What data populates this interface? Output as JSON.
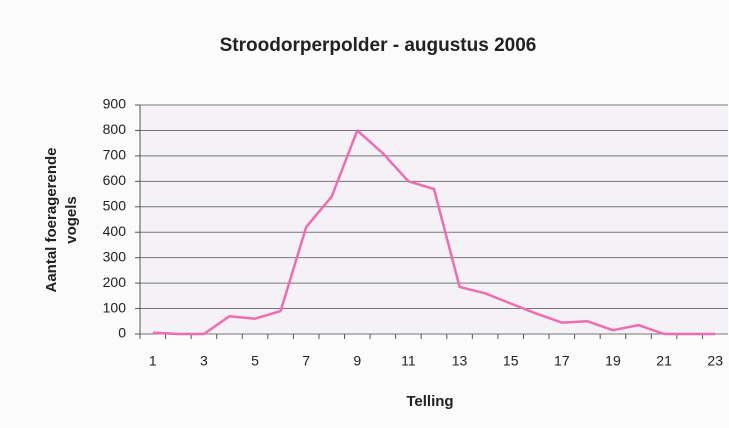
{
  "chart_data": {
    "type": "line",
    "title": "Stroodorperpolder - augustus 2006",
    "xlabel": "Telling",
    "ylabel": [
      "Aantal foeragerende",
      "vogels"
    ],
    "categories": [
      "1",
      null,
      "3",
      null,
      "5",
      null,
      "7",
      null,
      "9",
      null,
      "11",
      null,
      "13",
      null,
      "15",
      null,
      "17",
      null,
      "19",
      null,
      "21",
      null,
      "23"
    ],
    "series": [
      {
        "name": "vogels",
        "color": "#f06cb0",
        "values": [
          5,
          0,
          0,
          70,
          60,
          90,
          420,
          540,
          800,
          710,
          600,
          570,
          185,
          160,
          120,
          80,
          45,
          50,
          15,
          35,
          0,
          0,
          0
        ]
      }
    ],
    "ylim": [
      0,
      900
    ],
    "yticks": [
      0,
      100,
      200,
      300,
      400,
      500,
      600,
      700,
      800,
      900
    ],
    "grid": true
  }
}
